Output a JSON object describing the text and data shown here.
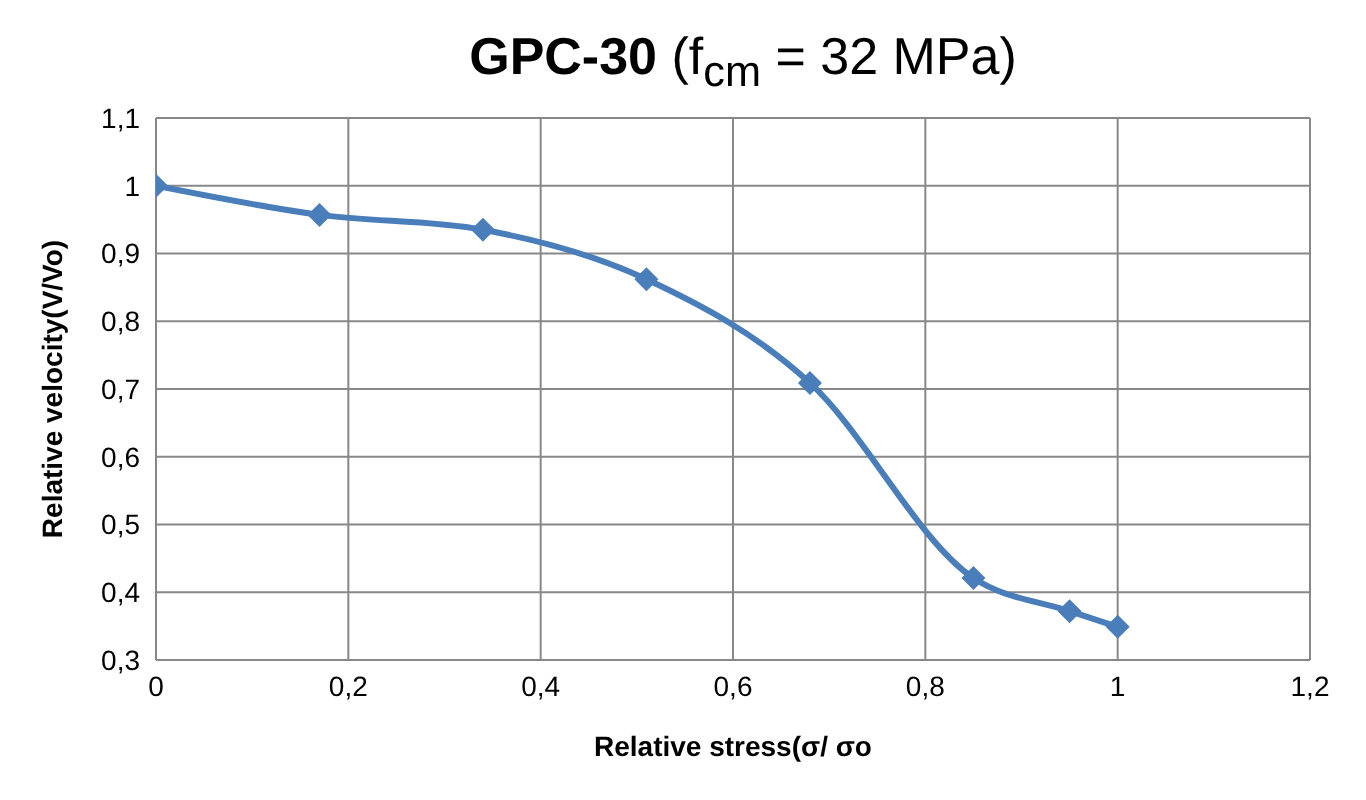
{
  "chart_data": {
    "type": "line",
    "title": "GPC-30 (f$_{cm}$ = 32 MPa)",
    "xlabel": "Relative stress(σ/ σo",
    "ylabel": "Relative  velocity(V/Vo)",
    "x": [
      0,
      0.17,
      0.34,
      0.51,
      0.68,
      0.85,
      0.95,
      1
    ],
    "series": [
      {
        "color": "#4a7ebb",
        "values": [
          1,
          0.957,
          0.935,
          0.862,
          0.709,
          0.421,
          0.372,
          0.349
        ]
      }
    ],
    "xlim": [
      0,
      1.2
    ],
    "xticks": [
      0,
      {
        "value": 0.2,
        "label": "0,2"
      },
      {
        "value": 0.4,
        "label": "0,4"
      },
      {
        "value": 0.6,
        "label": "0,6"
      },
      {
        "value": 0.8,
        "label": "0,8"
      },
      1,
      {
        "value": 1.2,
        "label": "1,2"
      }
    ],
    "ylim": [
      0.3,
      1.1
    ],
    "yticks": [
      {
        "value": 0.3,
        "label": "0,3"
      },
      {
        "value": 0.4,
        "label": "0,4"
      },
      {
        "value": 0.5,
        "label": "0,5"
      },
      {
        "value": 0.6,
        "label": "0,6"
      },
      {
        "value": 0.7,
        "label": "0,7"
      },
      {
        "value": 0.8,
        "label": "0,8"
      },
      {
        "value": 0.9,
        "label": "0,9"
      },
      1,
      {
        "value": 1.1,
        "label": "1,1"
      }
    ],
    "grid": true,
    "marker": "diamond",
    "line_style": "solid",
    "legend": false
  }
}
